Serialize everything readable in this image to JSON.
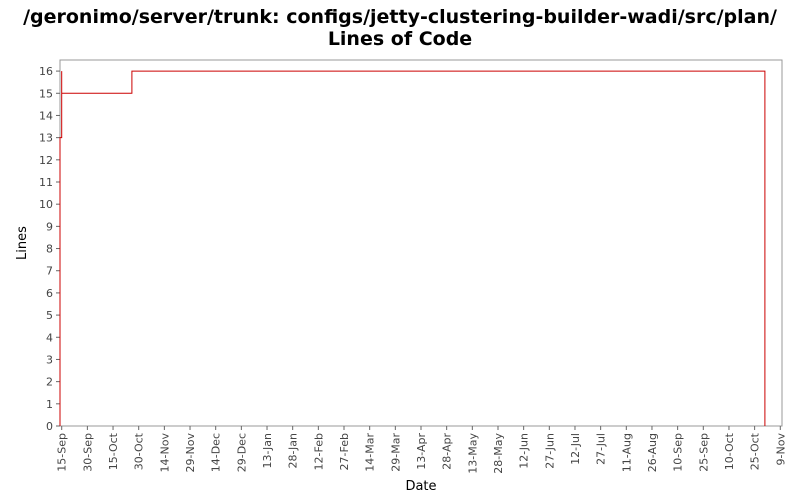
{
  "chart_data": {
    "type": "line",
    "title_line1": "/geronimo/server/trunk: configs/jetty-clustering-builder-wadi/src/plan/",
    "title_line2": "Lines of Code",
    "xlabel": "Date",
    "ylabel": "Lines",
    "ylim": [
      0,
      16.5
    ],
    "xlim": [
      "2006-09-14",
      "2007-11-10"
    ],
    "yticks": [
      0,
      1,
      2,
      3,
      4,
      5,
      6,
      7,
      8,
      9,
      10,
      11,
      12,
      13,
      14,
      15,
      16
    ],
    "xticks": [
      {
        "label": "15-Sep",
        "date": "2006-09-15"
      },
      {
        "label": "30-Sep",
        "date": "2006-09-30"
      },
      {
        "label": "15-Oct",
        "date": "2006-10-15"
      },
      {
        "label": "30-Oct",
        "date": "2006-10-30"
      },
      {
        "label": "14-Nov",
        "date": "2006-11-14"
      },
      {
        "label": "29-Nov",
        "date": "2006-11-29"
      },
      {
        "label": "14-Dec",
        "date": "2006-12-14"
      },
      {
        "label": "29-Dec",
        "date": "2006-12-29"
      },
      {
        "label": "13-Jan",
        "date": "2007-01-13"
      },
      {
        "label": "28-Jan",
        "date": "2007-01-28"
      },
      {
        "label": "12-Feb",
        "date": "2007-02-12"
      },
      {
        "label": "27-Feb",
        "date": "2007-02-27"
      },
      {
        "label": "14-Mar",
        "date": "2007-03-14"
      },
      {
        "label": "29-Mar",
        "date": "2007-03-29"
      },
      {
        "label": "13-Apr",
        "date": "2007-04-13"
      },
      {
        "label": "28-Apr",
        "date": "2007-04-28"
      },
      {
        "label": "13-May",
        "date": "2007-05-13"
      },
      {
        "label": "28-May",
        "date": "2007-05-28"
      },
      {
        "label": "12-Jun",
        "date": "2007-06-12"
      },
      {
        "label": "27-Jun",
        "date": "2007-06-27"
      },
      {
        "label": "12-Jul",
        "date": "2007-07-12"
      },
      {
        "label": "27-Jul",
        "date": "2007-07-27"
      },
      {
        "label": "11-Aug",
        "date": "2007-08-11"
      },
      {
        "label": "26-Aug",
        "date": "2007-08-26"
      },
      {
        "label": "10-Sep",
        "date": "2007-09-10"
      },
      {
        "label": "25-Sep",
        "date": "2007-09-25"
      },
      {
        "label": "10-Oct",
        "date": "2007-10-10"
      },
      {
        "label": "25-Oct",
        "date": "2007-10-25"
      },
      {
        "label": "9-Nov",
        "date": "2007-11-09"
      }
    ],
    "grid": false,
    "line_color": "#cc0000",
    "series": [
      {
        "step": true,
        "points": [
          {
            "x": "2006-09-14",
            "y": 0
          },
          {
            "x": "2006-09-14",
            "y": 13
          },
          {
            "x": "2006-09-15",
            "y": 13
          },
          {
            "x": "2006-09-15",
            "y": 16
          },
          {
            "x": "2006-09-15",
            "y": 15
          },
          {
            "x": "2006-10-26",
            "y": 15
          },
          {
            "x": "2006-10-26",
            "y": 16
          },
          {
            "x": "2007-10-31",
            "y": 16
          },
          {
            "x": "2007-10-31",
            "y": 0
          }
        ]
      }
    ]
  }
}
